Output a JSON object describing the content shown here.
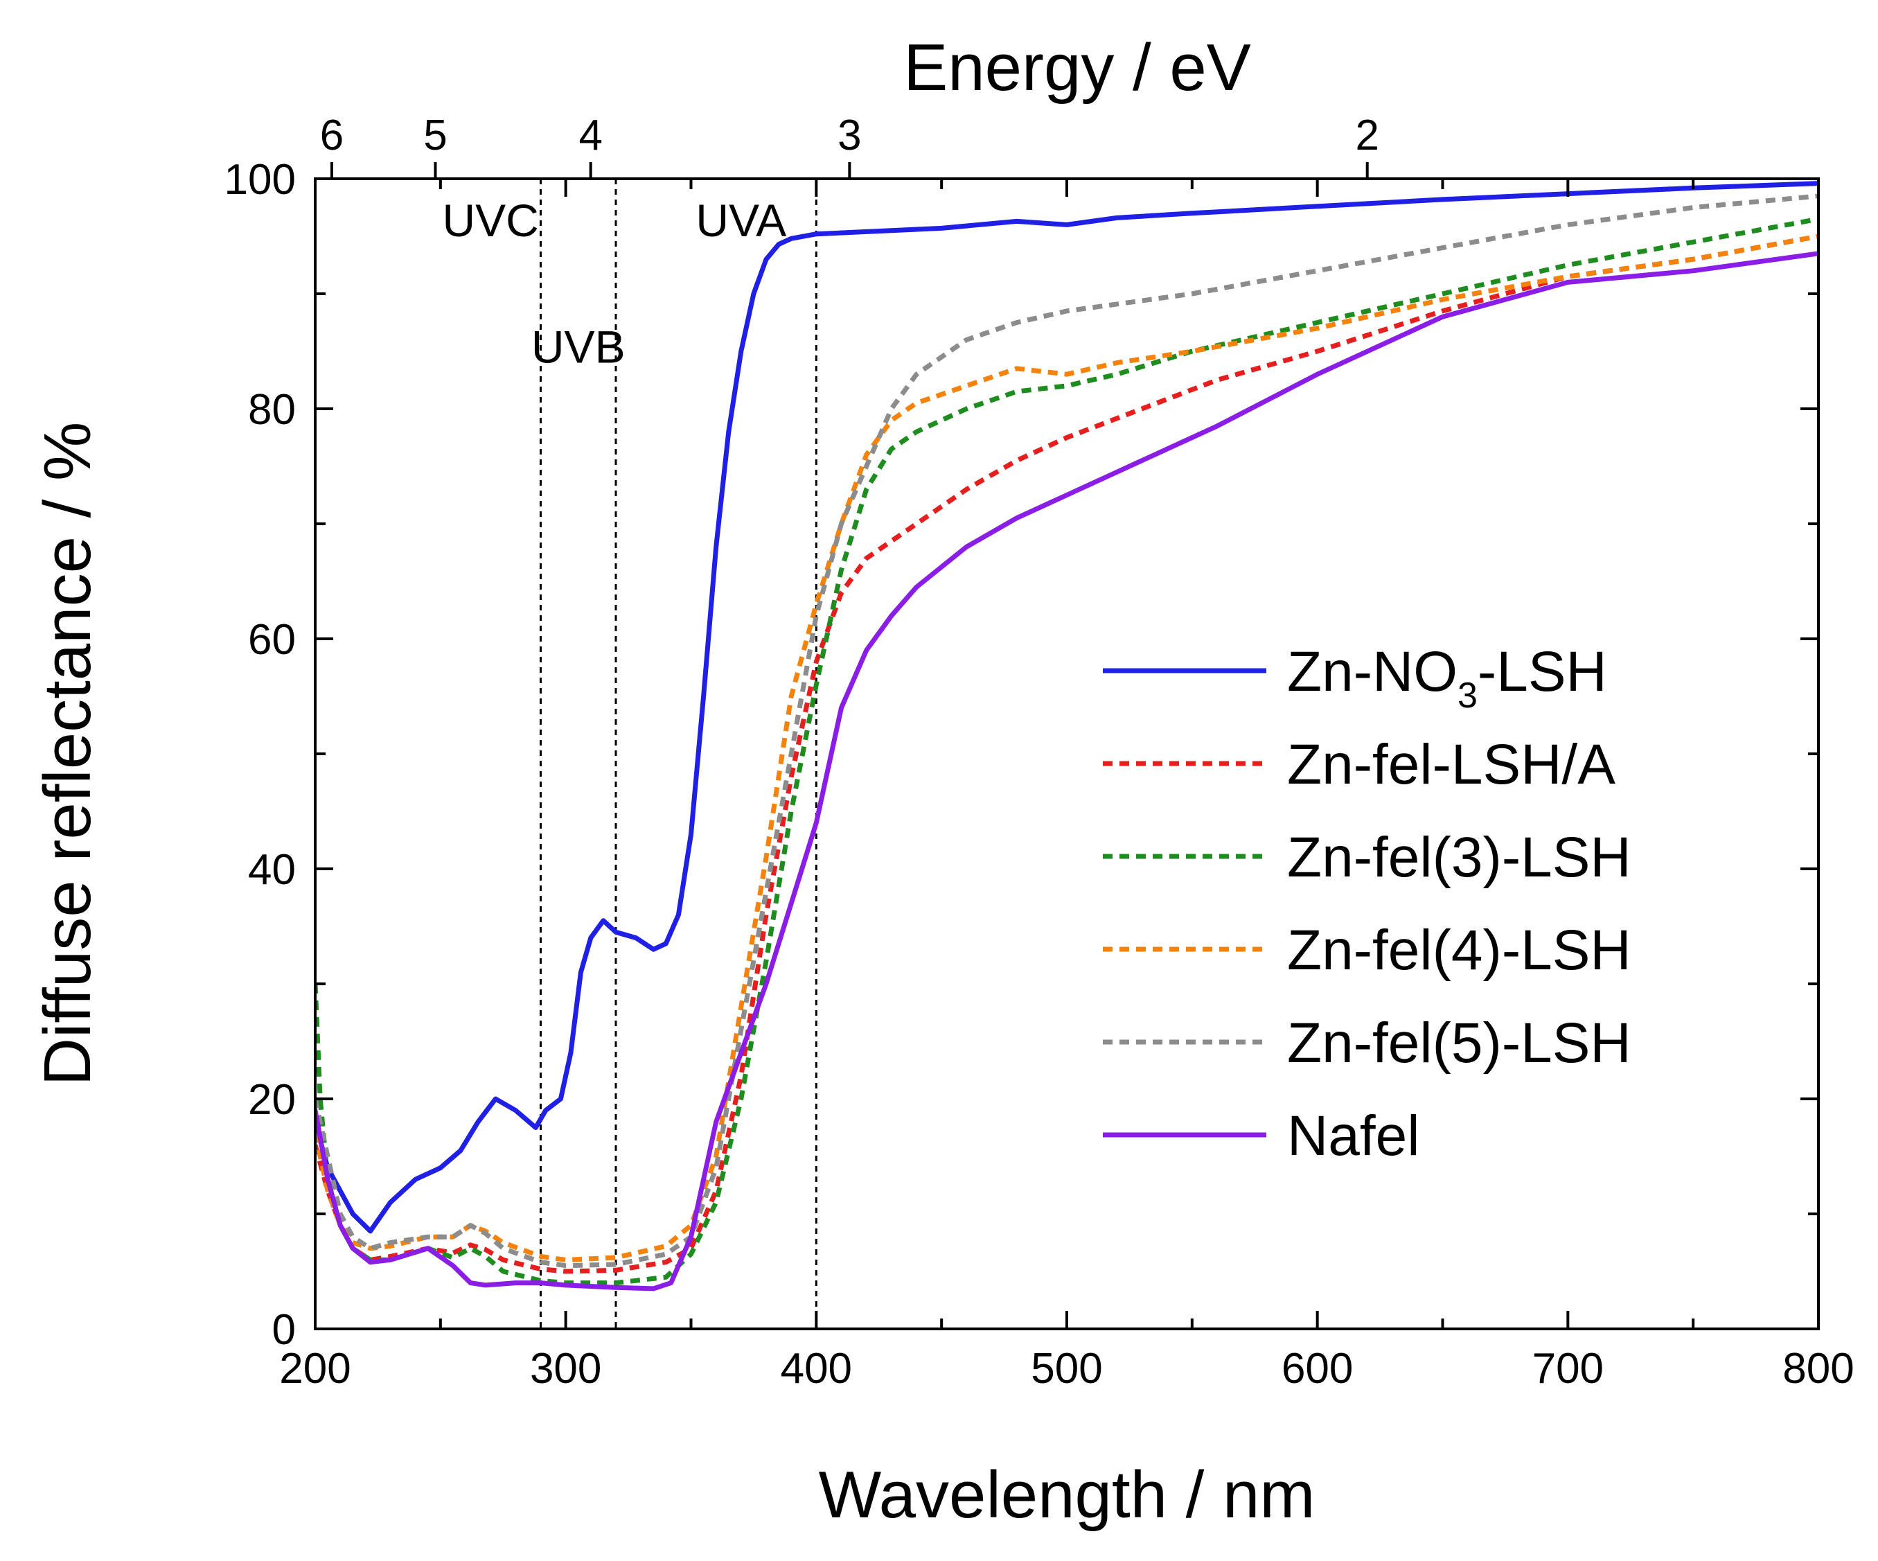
{
  "chart_data": {
    "type": "line",
    "title": "",
    "xlabel": "Wavelength / nm",
    "ylabel": "Diffuse reflectance / %",
    "top_axis_label": "Energy / eV",
    "xlim": [
      200,
      800
    ],
    "ylim": [
      0,
      100
    ],
    "x_ticks": [
      200,
      300,
      400,
      500,
      600,
      700,
      800
    ],
    "x_tick_labels": [
      "200",
      "300",
      "400",
      "500",
      "600",
      "700",
      "800"
    ],
    "y_ticks": [
      0,
      20,
      40,
      60,
      80,
      100
    ],
    "y_tick_labels": [
      "0",
      "20",
      "40",
      "60",
      "80",
      "100"
    ],
    "top_ticks_ev": [
      6,
      5,
      4,
      3,
      2
    ],
    "top_tick_labels": [
      "6",
      "5",
      "4",
      "3",
      "2"
    ],
    "grid": false,
    "legend_position": "center-right",
    "reference_lines_nm": [
      290,
      320,
      400
    ],
    "regions": [
      {
        "label": "UVC",
        "x": 270,
        "y": 95
      },
      {
        "label": "UVB",
        "x": 305,
        "y": 84
      },
      {
        "label": "UVA",
        "x": 370,
        "y": 95
      }
    ],
    "series": [
      {
        "name": "Zn-NO3-LSH",
        "legend_main": "Zn-NO",
        "legend_sub": "3",
        "legend_tail": "-LSH",
        "color": "#1f1fe6",
        "style": "solid",
        "points": [
          [
            200,
            18
          ],
          [
            205,
            14
          ],
          [
            210,
            12
          ],
          [
            215,
            10
          ],
          [
            222,
            8.5
          ],
          [
            230,
            11
          ],
          [
            240,
            13
          ],
          [
            250,
            14
          ],
          [
            258,
            15.5
          ],
          [
            265,
            18
          ],
          [
            272,
            20
          ],
          [
            280,
            19
          ],
          [
            288,
            17.5
          ],
          [
            292,
            19
          ],
          [
            298,
            20
          ],
          [
            302,
            24
          ],
          [
            306,
            31
          ],
          [
            310,
            34
          ],
          [
            315,
            35.5
          ],
          [
            320,
            34.5
          ],
          [
            328,
            34
          ],
          [
            335,
            33
          ],
          [
            340,
            33.5
          ],
          [
            345,
            36
          ],
          [
            350,
            43
          ],
          [
            355,
            55
          ],
          [
            360,
            68
          ],
          [
            365,
            78
          ],
          [
            370,
            85
          ],
          [
            375,
            90
          ],
          [
            380,
            93
          ],
          [
            385,
            94.3
          ],
          [
            390,
            94.8
          ],
          [
            400,
            95.2
          ],
          [
            420,
            95.4
          ],
          [
            450,
            95.7
          ],
          [
            480,
            96.3
          ],
          [
            500,
            96
          ],
          [
            520,
            96.6
          ],
          [
            550,
            97
          ],
          [
            600,
            97.6
          ],
          [
            650,
            98.2
          ],
          [
            700,
            98.7
          ],
          [
            750,
            99.2
          ],
          [
            800,
            99.6
          ]
        ]
      },
      {
        "name": "Zn-fel-LSH/A",
        "color": "#e61e1e",
        "style": "dashed",
        "points": [
          [
            200,
            16
          ],
          [
            205,
            12
          ],
          [
            210,
            9
          ],
          [
            215,
            7
          ],
          [
            222,
            6
          ],
          [
            230,
            6.3
          ],
          [
            245,
            7
          ],
          [
            255,
            6.6
          ],
          [
            262,
            7.3
          ],
          [
            268,
            6.9
          ],
          [
            275,
            6
          ],
          [
            290,
            5.2
          ],
          [
            300,
            5
          ],
          [
            320,
            5.1
          ],
          [
            340,
            5.8
          ],
          [
            350,
            7
          ],
          [
            360,
            12
          ],
          [
            370,
            22
          ],
          [
            380,
            36
          ],
          [
            390,
            48
          ],
          [
            400,
            58
          ],
          [
            410,
            64
          ],
          [
            420,
            67
          ],
          [
            440,
            70
          ],
          [
            460,
            73
          ],
          [
            480,
            75.5
          ],
          [
            500,
            77.5
          ],
          [
            530,
            80
          ],
          [
            560,
            82.5
          ],
          [
            600,
            85
          ],
          [
            650,
            88.5
          ],
          [
            700,
            91.5
          ],
          [
            750,
            93
          ],
          [
            800,
            95
          ]
        ]
      },
      {
        "name": "Zn-fel(3)-LSH",
        "color": "#1e8c1e",
        "style": "dashed",
        "points": [
          [
            200,
            30
          ],
          [
            202,
            20
          ],
          [
            205,
            13
          ],
          [
            210,
            9
          ],
          [
            215,
            7
          ],
          [
            222,
            6
          ],
          [
            230,
            6
          ],
          [
            245,
            7
          ],
          [
            255,
            6.2
          ],
          [
            262,
            7
          ],
          [
            268,
            6.3
          ],
          [
            275,
            5
          ],
          [
            290,
            4.2
          ],
          [
            300,
            4
          ],
          [
            320,
            4
          ],
          [
            340,
            4.5
          ],
          [
            350,
            6.5
          ],
          [
            360,
            11
          ],
          [
            370,
            20
          ],
          [
            380,
            32
          ],
          [
            390,
            45
          ],
          [
            400,
            56
          ],
          [
            410,
            66
          ],
          [
            420,
            73
          ],
          [
            430,
            76.5
          ],
          [
            440,
            78
          ],
          [
            460,
            80
          ],
          [
            480,
            81.5
          ],
          [
            500,
            82
          ],
          [
            520,
            83
          ],
          [
            550,
            85
          ],
          [
            600,
            87.5
          ],
          [
            650,
            90
          ],
          [
            700,
            92.5
          ],
          [
            750,
            94.5
          ],
          [
            800,
            96.5
          ]
        ]
      },
      {
        "name": "Zn-fel(4)-LSH",
        "color": "#f5820a",
        "style": "dashed",
        "points": [
          [
            200,
            17
          ],
          [
            205,
            12
          ],
          [
            210,
            9
          ],
          [
            215,
            7.5
          ],
          [
            222,
            7
          ],
          [
            230,
            7.2
          ],
          [
            245,
            8
          ],
          [
            255,
            8
          ],
          [
            262,
            9
          ],
          [
            268,
            8.5
          ],
          [
            275,
            7.5
          ],
          [
            290,
            6.3
          ],
          [
            300,
            6
          ],
          [
            320,
            6.2
          ],
          [
            340,
            7.2
          ],
          [
            350,
            9
          ],
          [
            360,
            15
          ],
          [
            370,
            28
          ],
          [
            380,
            41
          ],
          [
            390,
            55
          ],
          [
            400,
            63
          ],
          [
            410,
            70
          ],
          [
            420,
            76
          ],
          [
            430,
            79
          ],
          [
            440,
            80.5
          ],
          [
            460,
            82
          ],
          [
            480,
            83.5
          ],
          [
            500,
            83
          ],
          [
            520,
            84
          ],
          [
            550,
            85
          ],
          [
            600,
            87
          ],
          [
            650,
            89.5
          ],
          [
            700,
            91.5
          ],
          [
            750,
            93
          ],
          [
            800,
            95
          ]
        ]
      },
      {
        "name": "Zn-fel(5)-LSH",
        "color": "#8c8c8c",
        "style": "dashed",
        "points": [
          [
            200,
            20
          ],
          [
            205,
            15
          ],
          [
            210,
            10
          ],
          [
            215,
            8
          ],
          [
            222,
            7
          ],
          [
            230,
            7.5
          ],
          [
            245,
            8
          ],
          [
            255,
            8
          ],
          [
            262,
            9
          ],
          [
            268,
            8.3
          ],
          [
            275,
            7
          ],
          [
            290,
            5.8
          ],
          [
            300,
            5.5
          ],
          [
            320,
            5.6
          ],
          [
            340,
            6.5
          ],
          [
            350,
            8
          ],
          [
            360,
            14
          ],
          [
            370,
            26
          ],
          [
            380,
            38
          ],
          [
            390,
            50
          ],
          [
            400,
            62
          ],
          [
            410,
            70
          ],
          [
            420,
            75
          ],
          [
            430,
            80
          ],
          [
            440,
            83
          ],
          [
            460,
            86
          ],
          [
            480,
            87.5
          ],
          [
            500,
            88.5
          ],
          [
            550,
            90
          ],
          [
            600,
            92
          ],
          [
            650,
            94
          ],
          [
            700,
            96
          ],
          [
            750,
            97.5
          ],
          [
            800,
            98.5
          ]
        ]
      },
      {
        "name": "Nafel",
        "color": "#8a1ee6",
        "style": "solid",
        "points": [
          [
            200,
            19
          ],
          [
            205,
            13
          ],
          [
            210,
            9
          ],
          [
            215,
            7
          ],
          [
            222,
            5.8
          ],
          [
            230,
            6
          ],
          [
            245,
            7
          ],
          [
            255,
            5.5
          ],
          [
            262,
            4
          ],
          [
            268,
            3.8
          ],
          [
            280,
            4
          ],
          [
            290,
            4
          ],
          [
            300,
            3.8
          ],
          [
            320,
            3.6
          ],
          [
            335,
            3.5
          ],
          [
            342,
            4
          ],
          [
            350,
            8
          ],
          [
            360,
            18
          ],
          [
            370,
            24
          ],
          [
            380,
            30
          ],
          [
            390,
            37
          ],
          [
            400,
            44
          ],
          [
            410,
            54
          ],
          [
            420,
            59
          ],
          [
            430,
            62
          ],
          [
            440,
            64.5
          ],
          [
            460,
            68
          ],
          [
            480,
            70.5
          ],
          [
            500,
            72.5
          ],
          [
            530,
            75.5
          ],
          [
            560,
            78.5
          ],
          [
            600,
            83
          ],
          [
            650,
            88
          ],
          [
            700,
            91
          ],
          [
            750,
            92
          ],
          [
            800,
            93.5
          ]
        ]
      }
    ]
  }
}
